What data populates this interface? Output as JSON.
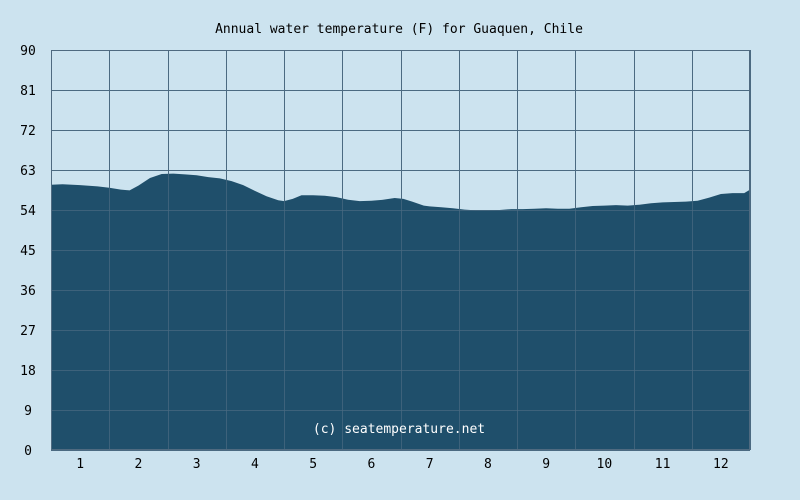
{
  "chart_data": {
    "type": "area",
    "title": "Annual water temperature (F) for Guaquen, Chile",
    "xlabel": "",
    "ylabel": "",
    "categories": [
      "1",
      "2",
      "3",
      "4",
      "5",
      "6",
      "7",
      "8",
      "9",
      "10",
      "11",
      "12"
    ],
    "y_ticks": [
      "0",
      "9",
      "18",
      "27",
      "36",
      "45",
      "54",
      "63",
      "72",
      "81",
      "90"
    ],
    "ylim": [
      0,
      90
    ],
    "xlim": [
      0.5,
      12.5
    ],
    "grid": true,
    "legend": "none",
    "watermark": "(c) seatemperature.net",
    "series": [
      {
        "x": [
          0.5,
          0.7,
          1.0,
          1.3,
          1.5,
          1.7,
          1.85,
          2.0,
          2.2,
          2.4,
          2.6,
          2.8,
          3.0,
          3.2,
          3.4,
          3.6,
          3.8,
          4.0,
          4.2,
          4.4,
          4.5,
          4.65,
          4.8,
          5.0,
          5.2,
          5.4,
          5.6,
          5.8,
          6.0,
          6.2,
          6.4,
          6.55,
          6.7,
          6.9,
          7.0,
          7.2,
          7.4,
          7.6,
          7.8,
          8.0,
          8.2,
          8.4,
          8.6,
          8.8,
          9.0,
          9.2,
          9.4,
          9.6,
          9.8,
          10.0,
          10.2,
          10.4,
          10.6,
          10.8,
          11.0,
          11.2,
          11.4,
          11.6,
          11.8,
          12.0,
          12.2,
          12.4,
          12.5
        ],
        "y": [
          59.7,
          59.8,
          59.6,
          59.3,
          59.0,
          58.6,
          58.4,
          59.5,
          61.2,
          62.1,
          62.2,
          62.0,
          61.8,
          61.4,
          61.1,
          60.5,
          59.6,
          58.3,
          57.1,
          56.2,
          56.0,
          56.5,
          57.3,
          57.3,
          57.2,
          56.9,
          56.3,
          56.0,
          56.1,
          56.3,
          56.7,
          56.5,
          55.9,
          55.0,
          54.8,
          54.6,
          54.4,
          54.1,
          53.9,
          53.9,
          54.0,
          54.2,
          54.2,
          54.3,
          54.4,
          54.3,
          54.3,
          54.6,
          54.9,
          55.0,
          55.1,
          55.0,
          55.2,
          55.5,
          55.7,
          55.8,
          55.9,
          56.1,
          56.8,
          57.6,
          57.8,
          57.8,
          58.6
        ]
      }
    ],
    "colors": {
      "background": "#cce3ef",
      "area_fill": "#1f4f6b",
      "grid_on_background": "#4f6a80",
      "grid_on_area": "#4a6b82",
      "watermark": "#ffffff"
    }
  }
}
